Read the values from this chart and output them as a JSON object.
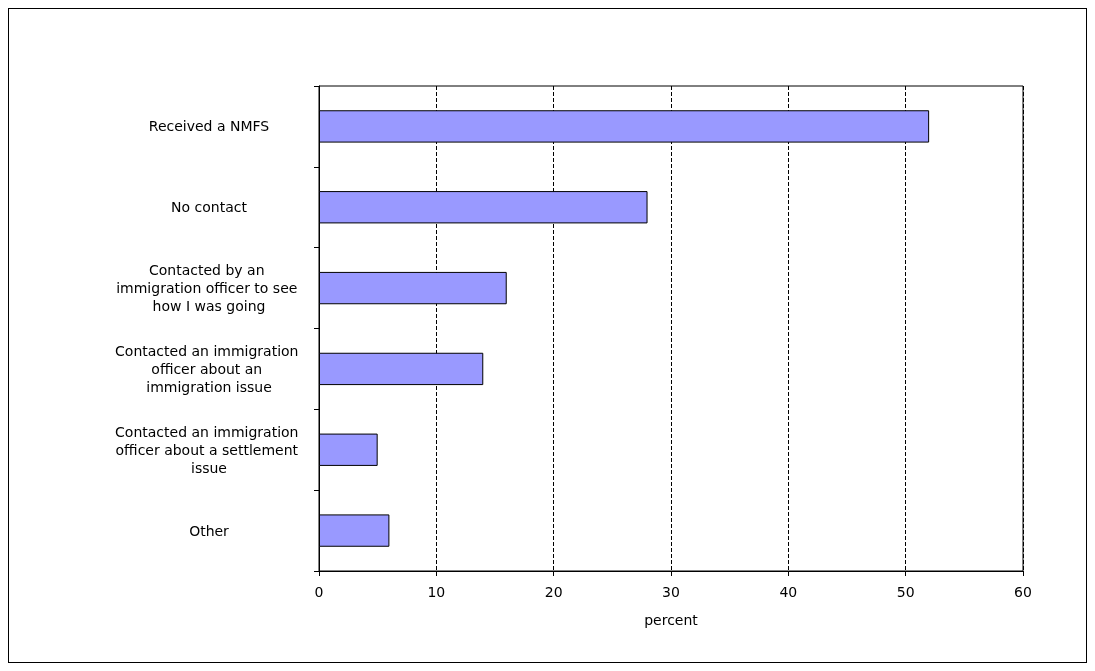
{
  "chart_data": {
    "type": "bar",
    "orientation": "horizontal",
    "xlabel": "percent",
    "categories": [
      "Received a NMFS",
      "No contact",
      "Contacted by an immigration officer to see how I was going",
      "Contacted an immigration officer about an immigration issue",
      "Contacted an immigration officer about a settlement issue",
      "Other"
    ],
    "values": [
      52,
      28,
      16,
      14,
      5,
      6
    ],
    "color": "#9999ff",
    "xlim": [
      0,
      60
    ],
    "xticks": [
      0,
      10,
      20,
      30,
      40,
      50,
      60
    ],
    "grid": "x"
  }
}
